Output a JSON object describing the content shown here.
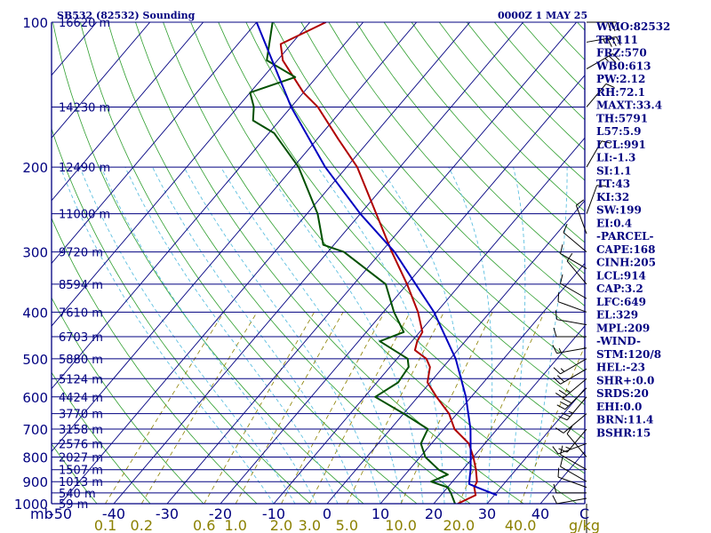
{
  "header": {
    "station": "SB532 (82532) Sounding",
    "time": "0000Z  1 MAY 25"
  },
  "axis": {
    "pressure_unit_label": "mb",
    "temp_unit_label": "C",
    "mixing_ratio_unit_label": "g/kg"
  },
  "colors": {
    "frame": "#000080",
    "isotherm": "#000080",
    "dry_adiabat": "#2e9e2e",
    "moist_adiabat": "#5fc0e0",
    "mixing_ratio": "#8b8000",
    "temperature": "#b00000",
    "dewpoint": "#005000",
    "parcel": "#0000c0",
    "wind_barb": "#000000"
  },
  "pressure_levels": [
    {
      "p": 100,
      "p_label": "100",
      "h_label": "16620 m"
    },
    {
      "p": 150,
      "p_label": "",
      "h_label": "14230 m"
    },
    {
      "p": 200,
      "p_label": "200",
      "h_label": "12490 m"
    },
    {
      "p": 250,
      "p_label": "",
      "h_label": "11000 m"
    },
    {
      "p": 300,
      "p_label": "300",
      "h_label": "9720 m"
    },
    {
      "p": 350,
      "p_label": "",
      "h_label": "8594 m"
    },
    {
      "p": 400,
      "p_label": "400",
      "h_label": "7610 m"
    },
    {
      "p": 450,
      "p_label": "",
      "h_label": "6703 m"
    },
    {
      "p": 500,
      "p_label": "500",
      "h_label": "5880 m"
    },
    {
      "p": 550,
      "p_label": "",
      "h_label": "5124 m"
    },
    {
      "p": 600,
      "p_label": "600",
      "h_label": "4424 m"
    },
    {
      "p": 650,
      "p_label": "",
      "h_label": "3770 m"
    },
    {
      "p": 700,
      "p_label": "700",
      "h_label": "3158 m"
    },
    {
      "p": 750,
      "p_label": "",
      "h_label": "2576 m"
    },
    {
      "p": 800,
      "p_label": "800",
      "h_label": "2027 m"
    },
    {
      "p": 850,
      "p_label": "",
      "h_label": "1507 m"
    },
    {
      "p": 900,
      "p_label": "900",
      "h_label": "1013 m"
    },
    {
      "p": 950,
      "p_label": "",
      "h_label": "540 m"
    },
    {
      "p": 1000,
      "p_label": "1000",
      "h_label": "59 m"
    }
  ],
  "temperature_ticks": [
    {
      "t": -50,
      "label": "-50"
    },
    {
      "t": -40,
      "label": "-40"
    },
    {
      "t": -30,
      "label": "-30"
    },
    {
      "t": -20,
      "label": "-20"
    },
    {
      "t": -10,
      "label": "-10"
    },
    {
      "t": 0,
      "label": "0"
    },
    {
      "t": 10,
      "label": "10"
    },
    {
      "t": 20,
      "label": "20"
    },
    {
      "t": 30,
      "label": "30"
    },
    {
      "t": 40,
      "label": "40"
    }
  ],
  "mixing_ratio_ticks": [
    {
      "w": 0.1,
      "label": "0.1"
    },
    {
      "w": 0.2,
      "label": "0.2"
    },
    {
      "w": 0.6,
      "label": "0.6"
    },
    {
      "w": 1.0,
      "label": "1.0"
    },
    {
      "w": 2.0,
      "label": "2.0"
    },
    {
      "w": 3.0,
      "label": "3.0"
    },
    {
      "w": 5.0,
      "label": "5.0"
    },
    {
      "w": 10.0,
      "label": "10.0"
    },
    {
      "w": 20.0,
      "label": "20.0"
    },
    {
      "w": 40.0,
      "label": "40.0"
    }
  ],
  "indices": [
    "WMO:82532",
    "TP:111",
    "FRZ:570",
    "WB0:613",
    "PW:2.12",
    "RH:72.1",
    "MAXT:33.4",
    "TH:5791",
    "L57:5.9",
    "LCL:991",
    "LI:-1.3",
    "SI:1.1",
    "TT:43",
    "KI:32",
    "SW:199",
    "EI:0.4",
    "-PARCEL-",
    "CAPE:168",
    "CINH:205",
    "LCL:914",
    "CAP:3.2",
    "LFC:649",
    "EL:329",
    "MPL:209",
    "-WIND-",
    "STM:120/8",
    "HEL:-23",
    "SHR+:0.0",
    "SRDS:20",
    "EHI:0.0",
    "BRN:11.4",
    "BSHR:15"
  ],
  "chart_data": {
    "type": "skew-t log-p sounding",
    "title": "SB532 (82532) Sounding",
    "subtitle": "0000Z  1 MAY 25",
    "xlabel": "C",
    "ylabel": "mb",
    "secondary_xlabel": "g/kg",
    "xlim": [
      -50,
      50
    ],
    "ylim": [
      1000,
      100
    ],
    "y_scale": "log",
    "grid": true,
    "series": [
      {
        "kind": "temperature",
        "points": [
          {
            "p": 1000,
            "t": 24.5
          },
          {
            "p": 960,
            "t": 26.5
          },
          {
            "p": 925,
            "t": 25.0
          },
          {
            "p": 900,
            "t": 24.6
          },
          {
            "p": 850,
            "t": 22.5
          },
          {
            "p": 800,
            "t": 20.0
          },
          {
            "p": 750,
            "t": 17.0
          },
          {
            "p": 700,
            "t": 12.0
          },
          {
            "p": 650,
            "t": 8.5
          },
          {
            "p": 600,
            "t": 3.5
          },
          {
            "p": 560,
            "t": -0.5
          },
          {
            "p": 520,
            "t": -2.5
          },
          {
            "p": 500,
            "t": -4.5
          },
          {
            "p": 480,
            "t": -8.0
          },
          {
            "p": 460,
            "t": -9.0
          },
          {
            "p": 440,
            "t": -9.5
          },
          {
            "p": 400,
            "t": -13.5
          },
          {
            "p": 350,
            "t": -20.0
          },
          {
            "p": 300,
            "t": -28.0
          },
          {
            "p": 250,
            "t": -37.0
          },
          {
            "p": 200,
            "t": -48.0
          },
          {
            "p": 175,
            "t": -56.0
          },
          {
            "p": 150,
            "t": -65.0
          },
          {
            "p": 140,
            "t": -70.0
          },
          {
            "p": 120,
            "t": -79.0
          },
          {
            "p": 111,
            "t": -82.0
          },
          {
            "p": 100,
            "t": -77.0
          }
        ]
      },
      {
        "kind": "dewpoint",
        "points": [
          {
            "p": 1000,
            "t": 24.0
          },
          {
            "p": 950,
            "t": 21.5
          },
          {
            "p": 925,
            "t": 20.0
          },
          {
            "p": 900,
            "t": 16.0
          },
          {
            "p": 870,
            "t": 18.0
          },
          {
            "p": 850,
            "t": 15.5
          },
          {
            "p": 800,
            "t": 11.0
          },
          {
            "p": 750,
            "t": 8.0
          },
          {
            "p": 700,
            "t": 7.0
          },
          {
            "p": 650,
            "t": 0.0
          },
          {
            "p": 600,
            "t": -8.0
          },
          {
            "p": 560,
            "t": -6.0
          },
          {
            "p": 520,
            "t": -6.5
          },
          {
            "p": 500,
            "t": -8.0
          },
          {
            "p": 460,
            "t": -16.0
          },
          {
            "p": 440,
            "t": -13.0
          },
          {
            "p": 400,
            "t": -18.0
          },
          {
            "p": 350,
            "t": -24.0
          },
          {
            "p": 300,
            "t": -37.0
          },
          {
            "p": 290,
            "t": -42.0
          },
          {
            "p": 250,
            "t": -48.0
          },
          {
            "p": 200,
            "t": -59.0
          },
          {
            "p": 170,
            "t": -69.0
          },
          {
            "p": 160,
            "t": -75.0
          },
          {
            "p": 150,
            "t": -77.0
          },
          {
            "p": 140,
            "t": -80.0
          },
          {
            "p": 130,
            "t": -74.0
          },
          {
            "p": 120,
            "t": -82.0
          },
          {
            "p": 100,
            "t": -87.0
          }
        ]
      },
      {
        "kind": "parcel",
        "points": [
          {
            "p": 960,
            "t": 30.5
          },
          {
            "p": 925,
            "t": 25.5
          },
          {
            "p": 910,
            "t": 23.5
          },
          {
            "p": 880,
            "t": 22.5
          },
          {
            "p": 850,
            "t": 21.5
          },
          {
            "p": 800,
            "t": 19.5
          },
          {
            "p": 700,
            "t": 15.0
          },
          {
            "p": 600,
            "t": 9.0
          },
          {
            "p": 500,
            "t": 1.0
          },
          {
            "p": 400,
            "t": -10.5
          },
          {
            "p": 300,
            "t": -27.5
          },
          {
            "p": 250,
            "t": -40.0
          },
          {
            "p": 200,
            "t": -54.0
          },
          {
            "p": 150,
            "t": -70.0
          },
          {
            "p": 100,
            "t": -90.0
          }
        ]
      }
    ],
    "wind": [
      {
        "p": 1000,
        "dir": 180,
        "spd": 5
      },
      {
        "p": 975,
        "dir": 260,
        "spd": 10
      },
      {
        "p": 950,
        "dir": 270,
        "spd": 10
      },
      {
        "p": 925,
        "dir": 290,
        "spd": 10
      },
      {
        "p": 900,
        "dir": 300,
        "spd": 10
      },
      {
        "p": 850,
        "dir": 300,
        "spd": 10
      },
      {
        "p": 800,
        "dir": 320,
        "spd": 10
      },
      {
        "p": 750,
        "dir": 250,
        "spd": 10
      },
      {
        "p": 700,
        "dir": 220,
        "spd": 15
      },
      {
        "p": 650,
        "dir": 230,
        "spd": 10
      },
      {
        "p": 600,
        "dir": 220,
        "spd": 25
      },
      {
        "p": 575,
        "dir": 225,
        "spd": 30
      },
      {
        "p": 550,
        "dir": 230,
        "spd": 25
      },
      {
        "p": 525,
        "dir": 240,
        "spd": 20
      },
      {
        "p": 500,
        "dir": 240,
        "spd": 15
      },
      {
        "p": 475,
        "dir": 260,
        "spd": 15
      },
      {
        "p": 450,
        "dir": 270,
        "spd": 10
      },
      {
        "p": 425,
        "dir": 280,
        "spd": 10
      },
      {
        "p": 400,
        "dir": 290,
        "spd": 10
      },
      {
        "p": 375,
        "dir": 300,
        "spd": 10
      },
      {
        "p": 350,
        "dir": 320,
        "spd": 10
      },
      {
        "p": 325,
        "dir": 300,
        "spd": 10
      },
      {
        "p": 300,
        "dir": 310,
        "spd": 10
      },
      {
        "p": 275,
        "dir": 340,
        "spd": 10
      },
      {
        "p": 250,
        "dir": 20,
        "spd": 10
      },
      {
        "p": 200,
        "dir": 30,
        "spd": 10
      },
      {
        "p": 150,
        "dir": 40,
        "spd": 10
      },
      {
        "p": 125,
        "dir": 60,
        "spd": 25
      },
      {
        "p": 110,
        "dir": 80,
        "spd": 35
      },
      {
        "p": 100,
        "dir": 90,
        "spd": 35
      }
    ]
  }
}
